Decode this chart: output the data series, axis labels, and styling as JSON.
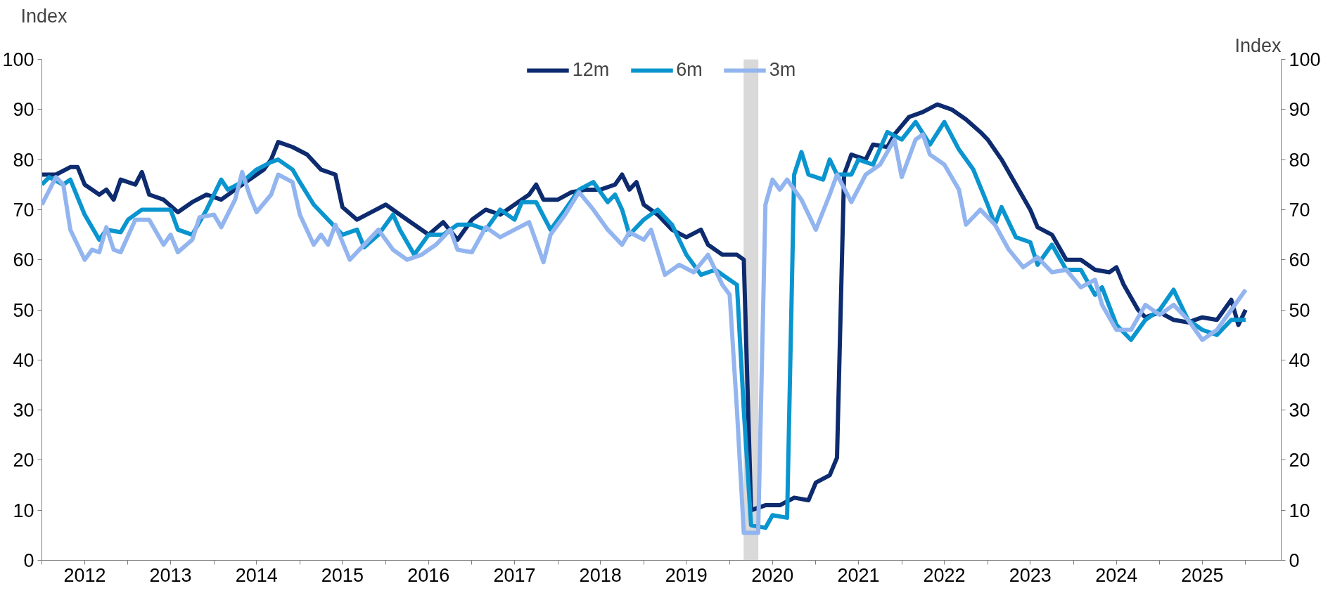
{
  "chart_data": {
    "type": "line",
    "ylabel": "Index",
    "y2label": "Index",
    "legend": "top",
    "grid": false,
    "line_style": "solid",
    "marker": "none",
    "xlim": [
      "2012-01",
      "2026-06"
    ],
    "xticks": [
      {
        "value": "2012-01",
        "label": null
      },
      {
        "value": "2012-07",
        "label": "2012"
      },
      {
        "value": "2013-01",
        "label": null
      },
      {
        "value": "2013-07",
        "label": "2013"
      },
      {
        "value": "2014-01",
        "label": null
      },
      {
        "value": "2014-07",
        "label": "2014"
      },
      {
        "value": "2015-01",
        "label": null
      },
      {
        "value": "2015-07",
        "label": "2015"
      },
      {
        "value": "2016-01",
        "label": null
      },
      {
        "value": "2016-07",
        "label": "2016"
      },
      {
        "value": "2017-01",
        "label": null
      },
      {
        "value": "2017-07",
        "label": "2017"
      },
      {
        "value": "2018-01",
        "label": null
      },
      {
        "value": "2018-07",
        "label": "2018"
      },
      {
        "value": "2019-01",
        "label": null
      },
      {
        "value": "2019-07",
        "label": "2019"
      },
      {
        "value": "2020-01",
        "label": null
      },
      {
        "value": "2020-07",
        "label": "2020"
      },
      {
        "value": "2021-01",
        "label": null
      },
      {
        "value": "2021-07",
        "label": "2021"
      },
      {
        "value": "2022-01",
        "label": null
      },
      {
        "value": "2022-07",
        "label": "2022"
      },
      {
        "value": "2023-01",
        "label": null
      },
      {
        "value": "2023-07",
        "label": "2023"
      },
      {
        "value": "2024-01",
        "label": null
      },
      {
        "value": "2024-07",
        "label": "2024"
      },
      {
        "value": "2025-01",
        "label": null
      },
      {
        "value": "2025-07",
        "label": "2025"
      },
      {
        "value": "2026-01",
        "label": null
      }
    ],
    "ylim": [
      0,
      100
    ],
    "yticks": [
      0,
      10,
      20,
      30,
      40,
      50,
      60,
      70,
      80,
      90,
      100
    ],
    "y2lim": [
      0,
      100
    ],
    "y2ticks": [
      0,
      10,
      20,
      30,
      40,
      50,
      60,
      70,
      80,
      90,
      100
    ],
    "bands": [
      {
        "axis": "x",
        "from": "2020-03",
        "to": "2020-05",
        "color": "#d9d9d9"
      }
    ],
    "series": [
      {
        "name": "12m",
        "color": "#0d2b6e",
        "x": [
          "2012-01",
          "2012-03",
          "2012-05",
          "2012-06",
          "2012-07",
          "2012-09",
          "2012-10",
          "2012-11",
          "2012-12",
          "2013-02",
          "2013-03",
          "2013-04",
          "2013-06",
          "2013-08",
          "2013-10",
          "2013-12",
          "2014-02",
          "2014-04",
          "2014-06",
          "2014-08",
          "2014-09",
          "2014-10",
          "2014-12",
          "2015-02",
          "2015-04",
          "2015-06",
          "2015-07",
          "2015-09",
          "2015-11",
          "2016-01",
          "2016-03",
          "2016-05",
          "2016-07",
          "2016-09",
          "2016-11",
          "2017-01",
          "2017-03",
          "2017-05",
          "2017-07",
          "2017-09",
          "2017-10",
          "2017-11",
          "2018-01",
          "2018-03",
          "2018-05",
          "2018-07",
          "2018-09",
          "2018-10",
          "2018-11",
          "2018-12",
          "2019-01",
          "2019-03",
          "2019-05",
          "2019-07",
          "2019-09",
          "2019-10",
          "2019-12",
          "2020-02",
          "2020-03",
          "2020-04",
          "2020-06",
          "2020-08",
          "2020-10",
          "2020-12",
          "2021-01",
          "2021-03",
          "2021-04",
          "2021-05",
          "2021-06",
          "2021-08",
          "2021-09",
          "2021-11",
          "2021-12",
          "2022-02",
          "2022-04",
          "2022-06",
          "2022-08",
          "2022-10",
          "2022-12",
          "2023-01",
          "2023-03",
          "2023-05",
          "2023-07",
          "2023-08",
          "2023-10",
          "2023-12",
          "2024-02",
          "2024-04",
          "2024-06",
          "2024-07",
          "2024-08",
          "2024-10",
          "2024-11",
          "2025-01",
          "2025-03",
          "2025-05",
          "2025-07",
          "2025-09",
          "2025-11",
          "2025-12",
          "2026-01"
        ],
        "values": [
          77,
          77,
          78.5,
          78.5,
          75,
          73,
          74,
          72,
          76,
          75,
          77.5,
          73,
          72,
          69.5,
          71.5,
          73,
          72,
          74,
          76,
          78,
          80,
          83.5,
          82.5,
          81,
          78,
          77,
          70.5,
          68,
          69.5,
          71,
          69,
          67,
          65,
          67.5,
          64,
          68,
          70,
          69,
          71,
          73,
          75,
          72,
          72,
          73.5,
          74,
          74,
          75,
          77,
          74,
          75.5,
          71,
          69,
          66,
          64.5,
          66,
          63,
          61,
          61,
          60,
          10,
          11,
          11,
          12.5,
          12,
          15.5,
          17,
          20.5,
          77,
          81,
          80,
          83,
          82.5,
          85,
          88.5,
          89.5,
          91,
          90,
          88,
          85.5,
          84,
          80,
          75,
          70,
          66.5,
          65,
          60,
          60,
          58,
          57.5,
          58.5,
          55,
          50,
          48.5,
          49.5,
          48,
          47.5,
          48.5,
          48,
          52,
          47,
          50
        ]
      },
      {
        "name": "6m",
        "color": "#0a95cf",
        "x": [
          "2012-01",
          "2012-02",
          "2012-04",
          "2012-05",
          "2012-07",
          "2012-09",
          "2012-10",
          "2012-12",
          "2013-01",
          "2013-03",
          "2013-05",
          "2013-07",
          "2013-08",
          "2013-10",
          "2013-12",
          "2014-02",
          "2014-03",
          "2014-05",
          "2014-07",
          "2014-09",
          "2014-10",
          "2014-12",
          "2015-01",
          "2015-03",
          "2015-05",
          "2015-07",
          "2015-09",
          "2015-10",
          "2015-12",
          "2016-02",
          "2016-03",
          "2016-05",
          "2016-07",
          "2016-09",
          "2016-11",
          "2017-01",
          "2017-03",
          "2017-05",
          "2017-07",
          "2017-08",
          "2017-10",
          "2017-12",
          "2018-02",
          "2018-04",
          "2018-06",
          "2018-08",
          "2018-09",
          "2018-10",
          "2018-11",
          "2019-01",
          "2019-03",
          "2019-05",
          "2019-07",
          "2019-09",
          "2019-11",
          "2020-01",
          "2020-02",
          "2020-03",
          "2020-04",
          "2020-06",
          "2020-07",
          "2020-09",
          "2020-10",
          "2020-11",
          "2020-12",
          "2021-02",
          "2021-03",
          "2021-04",
          "2021-06",
          "2021-07",
          "2021-09",
          "2021-11",
          "2022-01",
          "2022-03",
          "2022-05",
          "2022-07",
          "2022-09",
          "2022-11",
          "2023-01",
          "2023-02",
          "2023-03",
          "2023-05",
          "2023-07",
          "2023-08",
          "2023-10",
          "2023-12",
          "2024-02",
          "2024-04",
          "2024-05",
          "2024-07",
          "2024-09",
          "2024-11",
          "2025-01",
          "2025-03",
          "2025-05",
          "2025-07",
          "2025-09",
          "2025-11",
          "2026-01"
        ],
        "values": [
          75,
          76.5,
          75,
          76,
          69,
          64,
          66,
          65.5,
          68,
          70,
          70,
          70,
          66,
          65,
          70,
          76,
          74,
          75.5,
          78,
          79.5,
          80,
          78,
          75.5,
          71,
          68,
          65,
          66,
          62.5,
          65,
          69,
          66,
          61,
          65,
          65,
          67,
          67,
          66,
          70,
          68,
          71.5,
          71.5,
          66,
          70,
          74,
          75.5,
          71.5,
          73,
          70,
          65,
          68,
          70,
          67,
          61,
          57,
          58,
          56,
          55,
          30,
          7,
          6.5,
          9,
          8.5,
          77,
          81.5,
          77,
          76,
          80,
          77,
          77,
          80,
          79,
          85.5,
          84,
          87.5,
          83,
          87.5,
          82,
          78,
          71,
          67,
          70.5,
          64.5,
          63.5,
          59,
          63,
          58,
          58,
          53,
          54.5,
          47,
          44,
          48,
          50,
          54,
          48,
          46,
          45,
          48,
          48
        ]
      },
      {
        "name": "3m",
        "color": "#93b5ef",
        "x": [
          "2012-01",
          "2012-03",
          "2012-04",
          "2012-05",
          "2012-07",
          "2012-08",
          "2012-09",
          "2012-10",
          "2012-11",
          "2012-12",
          "2013-02",
          "2013-04",
          "2013-06",
          "2013-07",
          "2013-08",
          "2013-10",
          "2013-11",
          "2014-01",
          "2014-02",
          "2014-04",
          "2014-05",
          "2014-06",
          "2014-07",
          "2014-09",
          "2014-10",
          "2014-12",
          "2015-01",
          "2015-03",
          "2015-04",
          "2015-05",
          "2015-06",
          "2015-08",
          "2015-10",
          "2015-12",
          "2016-02",
          "2016-04",
          "2016-06",
          "2016-08",
          "2016-10",
          "2016-11",
          "2017-01",
          "2017-03",
          "2017-05",
          "2017-07",
          "2017-09",
          "2017-11",
          "2017-12",
          "2018-02",
          "2018-04",
          "2018-06",
          "2018-08",
          "2018-10",
          "2018-11",
          "2019-01",
          "2019-02",
          "2019-04",
          "2019-06",
          "2019-08",
          "2019-10",
          "2019-12",
          "2020-01",
          "2020-02",
          "2020-03",
          "2020-05",
          "2020-06",
          "2020-07",
          "2020-08",
          "2020-09",
          "2020-11",
          "2021-01",
          "2021-03",
          "2021-04",
          "2021-06",
          "2021-08",
          "2021-10",
          "2021-12",
          "2022-01",
          "2022-03",
          "2022-04",
          "2022-05",
          "2022-07",
          "2022-09",
          "2022-10",
          "2022-12",
          "2023-02",
          "2023-04",
          "2023-06",
          "2023-08",
          "2023-10",
          "2023-12",
          "2024-02",
          "2024-04",
          "2024-05",
          "2024-07",
          "2024-09",
          "2024-11",
          "2025-01",
          "2025-03",
          "2025-05",
          "2025-07",
          "2025-09",
          "2025-11",
          "2026-01"
        ],
        "values": [
          71,
          76.5,
          75,
          66,
          60,
          62,
          61.5,
          66.5,
          62,
          61.5,
          68,
          68,
          63,
          65,
          61.5,
          64,
          68.5,
          69,
          66.5,
          72,
          77.5,
          73,
          69.5,
          73,
          77,
          75.5,
          69,
          63,
          65,
          63,
          67,
          60,
          63,
          66,
          62,
          60,
          61,
          63,
          66,
          62,
          61.5,
          66.5,
          64.5,
          66,
          67.5,
          59.5,
          65,
          69,
          73.5,
          70,
          66,
          63,
          65.5,
          64,
          66,
          57,
          59,
          57.5,
          61,
          55,
          53,
          30,
          5.5,
          5.5,
          71,
          76,
          74,
          76,
          72,
          66,
          73,
          77,
          71.5,
          77,
          79,
          84,
          76.5,
          84,
          85,
          81,
          79,
          74,
          67,
          70,
          67,
          62,
          58.5,
          60.5,
          57.5,
          58,
          54.5,
          56,
          51,
          46,
          46,
          51,
          49,
          51,
          48,
          44,
          46,
          50,
          54
        ]
      }
    ]
  }
}
